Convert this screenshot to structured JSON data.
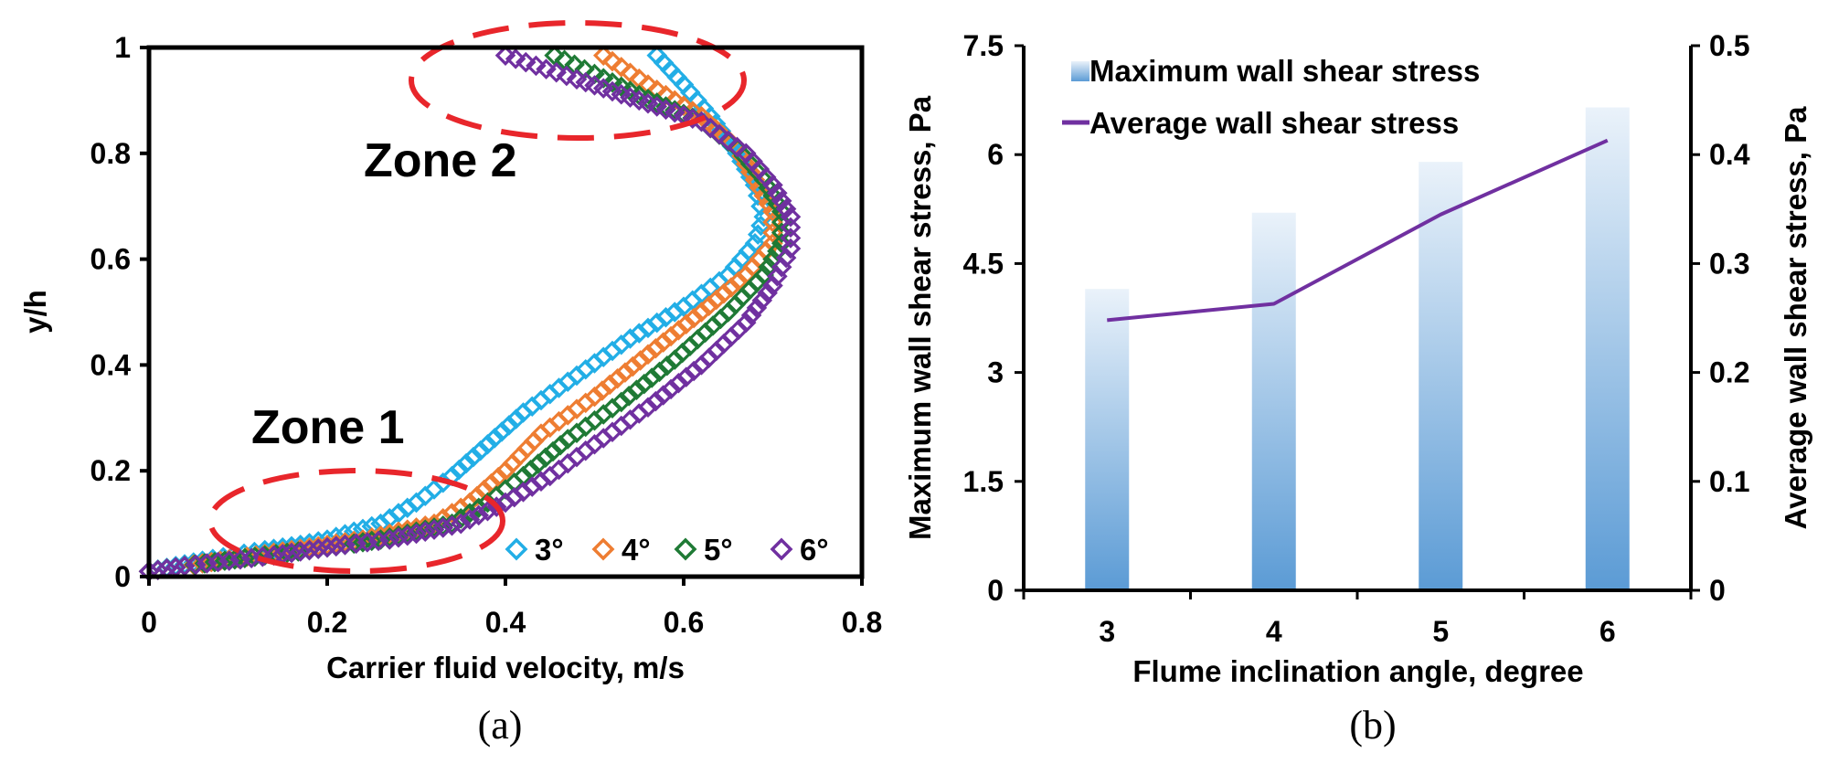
{
  "chart_data": [
    {
      "type": "scatter",
      "panel_label": "(a)",
      "xlabel": "Carrier fluid velocity, m/s",
      "ylabel": "y/h",
      "xlim": [
        0,
        0.8
      ],
      "ylim": [
        0,
        1
      ],
      "x_ticks": [
        "0",
        "0.2",
        "0.4",
        "0.6",
        "0.8"
      ],
      "y_ticks": [
        "0",
        "0.2",
        "0.4",
        "0.6",
        "0.8",
        "1"
      ],
      "grid": false,
      "legend_position": "bottom-right",
      "marker": "open-diamond",
      "annotations": [
        {
          "text": "Zone 1",
          "style": "dashed-ellipse",
          "color": "#e8262b"
        },
        {
          "text": "Zone 2",
          "style": "dashed-ellipse",
          "color": "#e8262b"
        }
      ],
      "series": [
        {
          "name": "3°",
          "color": "#22aee6",
          "points": [
            [
              0.0,
              0.01
            ],
            [
              0.03,
              0.02
            ],
            [
              0.06,
              0.03
            ],
            [
              0.095,
              0.04
            ],
            [
              0.13,
              0.05
            ],
            [
              0.17,
              0.06
            ],
            [
              0.2,
              0.07
            ],
            [
              0.23,
              0.085
            ],
            [
              0.26,
              0.1
            ],
            [
              0.3,
              0.14
            ],
            [
              0.34,
              0.19
            ],
            [
              0.38,
              0.25
            ],
            [
              0.42,
              0.31
            ],
            [
              0.48,
              0.38
            ],
            [
              0.54,
              0.45
            ],
            [
              0.6,
              0.51
            ],
            [
              0.65,
              0.57
            ],
            [
              0.68,
              0.63
            ],
            [
              0.69,
              0.68
            ],
            [
              0.68,
              0.74
            ],
            [
              0.66,
              0.8
            ],
            [
              0.63,
              0.87
            ],
            [
              0.6,
              0.93
            ],
            [
              0.57,
              0.985
            ]
          ]
        },
        {
          "name": "4°",
          "color": "#ee7d32",
          "points": [
            [
              0.0,
              0.01
            ],
            [
              0.04,
              0.02
            ],
            [
              0.08,
              0.03
            ],
            [
              0.12,
              0.04
            ],
            [
              0.16,
              0.05
            ],
            [
              0.2,
              0.06
            ],
            [
              0.24,
              0.07
            ],
            [
              0.28,
              0.085
            ],
            [
              0.32,
              0.1
            ],
            [
              0.36,
              0.14
            ],
            [
              0.4,
              0.2
            ],
            [
              0.44,
              0.27
            ],
            [
              0.5,
              0.34
            ],
            [
              0.56,
              0.42
            ],
            [
              0.62,
              0.5
            ],
            [
              0.67,
              0.57
            ],
            [
              0.7,
              0.63
            ],
            [
              0.7,
              0.69
            ],
            [
              0.68,
              0.75
            ],
            [
              0.66,
              0.81
            ],
            [
              0.62,
              0.87
            ],
            [
              0.56,
              0.93
            ],
            [
              0.51,
              0.985
            ]
          ]
        },
        {
          "name": "5°",
          "color": "#1f7a35",
          "points": [
            [
              0.0,
              0.01
            ],
            [
              0.04,
              0.02
            ],
            [
              0.085,
              0.03
            ],
            [
              0.13,
              0.04
            ],
            [
              0.18,
              0.05
            ],
            [
              0.22,
              0.06
            ],
            [
              0.26,
              0.07
            ],
            [
              0.3,
              0.085
            ],
            [
              0.34,
              0.1
            ],
            [
              0.38,
              0.14
            ],
            [
              0.42,
              0.19
            ],
            [
              0.47,
              0.26
            ],
            [
              0.53,
              0.33
            ],
            [
              0.59,
              0.41
            ],
            [
              0.65,
              0.5
            ],
            [
              0.69,
              0.57
            ],
            [
              0.71,
              0.63
            ],
            [
              0.71,
              0.69
            ],
            [
              0.69,
              0.75
            ],
            [
              0.66,
              0.81
            ],
            [
              0.62,
              0.86
            ],
            [
              0.55,
              0.91
            ],
            [
              0.5,
              0.95
            ],
            [
              0.455,
              0.985
            ]
          ]
        },
        {
          "name": "6°",
          "color": "#7030a0",
          "points": [
            [
              0.0,
              0.01
            ],
            [
              0.04,
              0.02
            ],
            [
              0.09,
              0.03
            ],
            [
              0.14,
              0.04
            ],
            [
              0.18,
              0.05
            ],
            [
              0.22,
              0.06
            ],
            [
              0.27,
              0.07
            ],
            [
              0.31,
              0.085
            ],
            [
              0.35,
              0.1
            ],
            [
              0.4,
              0.14
            ],
            [
              0.45,
              0.19
            ],
            [
              0.5,
              0.25
            ],
            [
              0.56,
              0.32
            ],
            [
              0.62,
              0.4
            ],
            [
              0.67,
              0.48
            ],
            [
              0.7,
              0.55
            ],
            [
              0.72,
              0.62
            ],
            [
              0.72,
              0.68
            ],
            [
              0.7,
              0.74
            ],
            [
              0.67,
              0.8
            ],
            [
              0.62,
              0.86
            ],
            [
              0.55,
              0.9
            ],
            [
              0.48,
              0.94
            ],
            [
              0.4,
              0.985
            ]
          ]
        }
      ]
    },
    {
      "type": "bar",
      "panel_label": "(b)",
      "xlabel": "Flume inclination angle, degree",
      "ylabel": "Maximum wall shear stress, Pa",
      "ylabel_right": "Average wall shear stress, Pa",
      "categories": [
        "3",
        "4",
        "5",
        "6"
      ],
      "ylim": [
        0,
        7.5
      ],
      "ylim_right": [
        0,
        0.5
      ],
      "y_ticks": [
        "0",
        "1.5",
        "3",
        "4.5",
        "6",
        "7.5"
      ],
      "y_ticks_right": [
        "0",
        "0.1",
        "0.2",
        "0.3",
        "0.4",
        "0.5"
      ],
      "grid": false,
      "legend_position": "top-left",
      "series": [
        {
          "name": "Maximum wall shear stress",
          "kind": "bar",
          "axis": "left",
          "color": "#5b9bd5",
          "values": [
            4.15,
            5.2,
            5.9,
            6.65
          ]
        },
        {
          "name": "Average wall shear stress",
          "kind": "line",
          "axis": "right",
          "color": "#7030a0",
          "values": [
            0.248,
            0.263,
            0.345,
            0.413
          ]
        }
      ]
    }
  ]
}
